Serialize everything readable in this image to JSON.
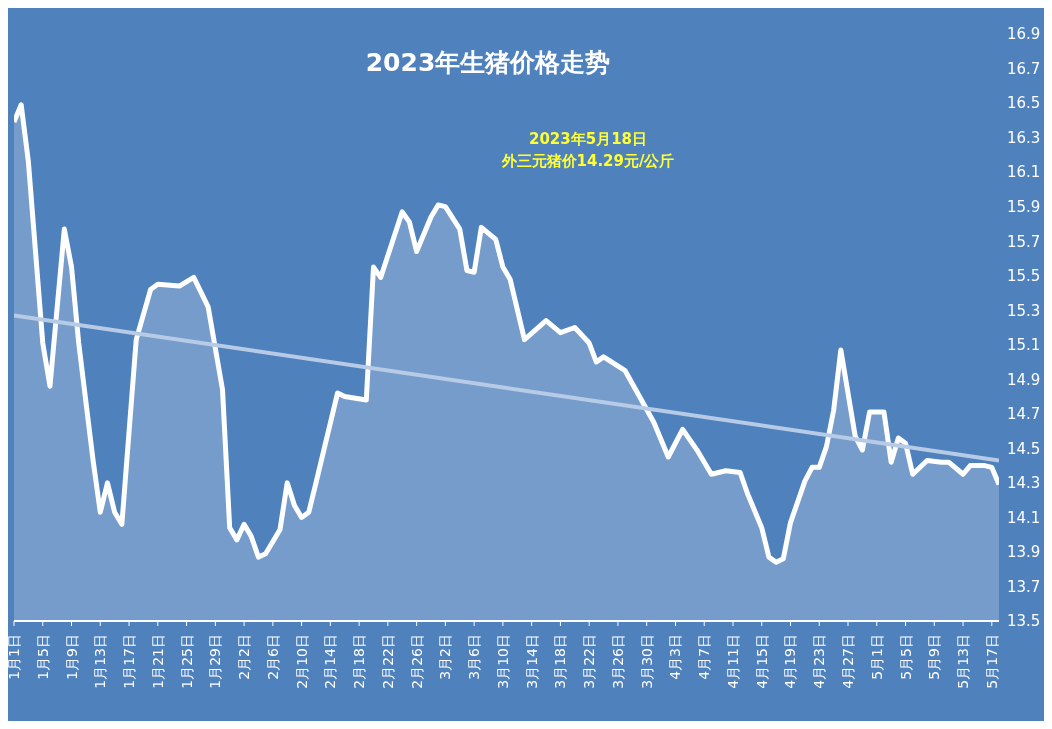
{
  "chart_data": {
    "type": "area",
    "title": "2023年生猪价格走势",
    "annotations": [
      "2023年5月18日",
      "外三元猪价14.29元/公斤"
    ],
    "series": [
      {
        "color": "#ffffff",
        "x": [
          "--01-01",
          "--01-02",
          "--01-03",
          "--01-05",
          "--01-06",
          "--01-08",
          "--01-09",
          "--01-10",
          "--01-12",
          "--01-13",
          "--01-14",
          "--01-15",
          "--01-16",
          "--01-18",
          "--01-20",
          "--01-21",
          "--01-24",
          "--01-26",
          "--01-28",
          "--01-30",
          "--01-31",
          "--02-01",
          "--02-02",
          "--02-03",
          "--02-04",
          "--02-05",
          "--02-07",
          "--02-08",
          "--02-09",
          "--02-10",
          "--02-11",
          "--02-12",
          "--02-15",
          "--02-16",
          "--02-19",
          "--02-20",
          "--02-21",
          "--02-24",
          "--02-25",
          "--02-26",
          "--02-28",
          "--03-01",
          "--03-02",
          "--03-04",
          "--03-05",
          "--03-06",
          "--03-07",
          "--03-09",
          "--03-10",
          "--03-11",
          "--03-13",
          "--03-16",
          "--03-18",
          "--03-20",
          "--03-22",
          "--03-23",
          "--03-24",
          "--03-27",
          "--03-29",
          "--03-31",
          "--04-02",
          "--04-04",
          "--04-06",
          "--04-08",
          "--04-10",
          "--04-12",
          "--04-13",
          "--04-15",
          "--04-16",
          "--04-17",
          "--04-18",
          "--04-19",
          "--04-21",
          "--04-22",
          "--04-23",
          "--04-24",
          "--04-25",
          "--04-26",
          "--04-27",
          "--04-28",
          "--04-29",
          "--04-30",
          "--05-02",
          "--05-03",
          "--05-04",
          "--05-05",
          "--05-06",
          "--05-08",
          "--05-10",
          "--05-11",
          "--05-13",
          "--05-14",
          "--05-16",
          "--05-17",
          "--05-18"
        ],
        "values": [
          16.39,
          16.49,
          16.16,
          15.11,
          14.86,
          15.77,
          15.55,
          15.11,
          14.43,
          14.13,
          14.3,
          14.13,
          14.06,
          15.13,
          15.42,
          15.45,
          15.44,
          15.49,
          15.32,
          14.84,
          14.04,
          13.97,
          14.06,
          13.99,
          13.87,
          13.89,
          14.03,
          14.3,
          14.17,
          14.1,
          14.13,
          14.3,
          14.82,
          14.8,
          14.78,
          15.55,
          15.49,
          15.87,
          15.81,
          15.64,
          15.84,
          15.91,
          15.9,
          15.77,
          15.53,
          15.52,
          15.78,
          15.71,
          15.55,
          15.48,
          15.13,
          15.24,
          15.17,
          15.2,
          15.11,
          15.0,
          15.03,
          14.95,
          14.8,
          14.65,
          14.45,
          14.61,
          14.49,
          14.35,
          14.37,
          14.36,
          14.24,
          14.04,
          13.87,
          13.84,
          13.86,
          14.07,
          14.31,
          14.39,
          14.39,
          14.51,
          14.72,
          15.07,
          14.82,
          14.57,
          14.49,
          14.71,
          14.71,
          14.42,
          14.56,
          14.53,
          14.35,
          14.43,
          14.42,
          14.42,
          14.35,
          14.4,
          14.4,
          14.39,
          14.29
        ]
      },
      {
        "type": "line",
        "color": "#b8cbe6",
        "x": [
          "--01-01",
          "--05-18"
        ],
        "values": [
          15.27,
          14.43
        ]
      }
    ],
    "xlim": [
      "--01-01",
      "--05-18"
    ],
    "xticks": [
      {
        "value": "--01-01",
        "label": "1月1日"
      },
      {
        "value": "--01-05",
        "label": "1月5日"
      },
      {
        "value": "--01-09",
        "label": "1月9日"
      },
      {
        "value": "--01-13",
        "label": "1月13日"
      },
      {
        "value": "--01-17",
        "label": "1月17日"
      },
      {
        "value": "--01-21",
        "label": "1月21日"
      },
      {
        "value": "--01-25",
        "label": "1月25日"
      },
      {
        "value": "--01-29",
        "label": "1月29日"
      },
      {
        "value": "--02-02",
        "label": "2月2日"
      },
      {
        "value": "--02-06",
        "label": "2月6日"
      },
      {
        "value": "--02-10",
        "label": "2月10日"
      },
      {
        "value": "--02-14",
        "label": "2月14日"
      },
      {
        "value": "--02-18",
        "label": "2月18日"
      },
      {
        "value": "--02-22",
        "label": "2月22日"
      },
      {
        "value": "--02-26",
        "label": "2月26日"
      },
      {
        "value": "--03-02",
        "label": "3月2日"
      },
      {
        "value": "--03-06",
        "label": "3月6日"
      },
      {
        "value": "--03-10",
        "label": "3月10日"
      },
      {
        "value": "--03-14",
        "label": "3月14日"
      },
      {
        "value": "--03-18",
        "label": "3月18日"
      },
      {
        "value": "--03-22",
        "label": "3月22日"
      },
      {
        "value": "--03-26",
        "label": "3月26日"
      },
      {
        "value": "--03-30",
        "label": "3月30日"
      },
      {
        "value": "--04-03",
        "label": "4月3日"
      },
      {
        "value": "--04-07",
        "label": "4月7日"
      },
      {
        "value": "--04-11",
        "label": "4月11日"
      },
      {
        "value": "--04-15",
        "label": "4月15日"
      },
      {
        "value": "--04-19",
        "label": "4月19日"
      },
      {
        "value": "--04-23",
        "label": "4月23日"
      },
      {
        "value": "--04-27",
        "label": "4月27日"
      },
      {
        "value": "--05-01",
        "label": "5月1日"
      },
      {
        "value": "--05-05",
        "label": "5月5日"
      },
      {
        "value": "--05-09",
        "label": "5月9日"
      },
      {
        "value": "--05-13",
        "label": "5月13日"
      },
      {
        "value": "--05-17",
        "label": "5月17日"
      }
    ],
    "ylim": [
      13.5,
      16.9
    ],
    "yticks": [
      13.5,
      13.7,
      13.9,
      14.1,
      14.3,
      14.5,
      14.7,
      14.9,
      15.1,
      15.3,
      15.5,
      15.7,
      15.9,
      16.1,
      16.3,
      16.5,
      16.7,
      16.9
    ],
    "grid": false,
    "legend": false,
    "marker": "none",
    "line_style": "solid"
  }
}
